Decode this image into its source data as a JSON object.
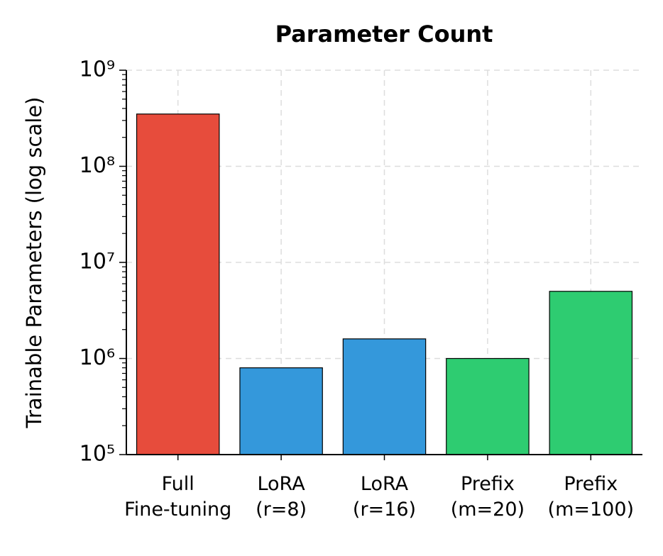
{
  "chart_data": {
    "type": "bar",
    "title": "Parameter Count",
    "ylabel": "Trainable Parameters (log scale)",
    "categories": [
      "Full\nFine-tuning",
      "LoRA\n(r=8)",
      "LoRA\n(r=16)",
      "Prefix\n(m=20)",
      "Prefix\n(m=100)"
    ],
    "values": [
      350000000,
      800000,
      1600000,
      1000000,
      5000000
    ],
    "colors": [
      "#e74c3c",
      "#3498db",
      "#3498db",
      "#2ecc71",
      "#2ecc71"
    ],
    "log_scale": true,
    "ylim": [
      100000,
      1000000000
    ],
    "yticks": [
      {
        "value": 100000,
        "label": "10⁵"
      },
      {
        "value": 1000000,
        "label": "10⁶"
      },
      {
        "value": 10000000,
        "label": "10⁷"
      },
      {
        "value": 100000000,
        "label": "10⁸"
      },
      {
        "value": 1000000000,
        "label": "10⁹"
      }
    ],
    "grid": true
  }
}
